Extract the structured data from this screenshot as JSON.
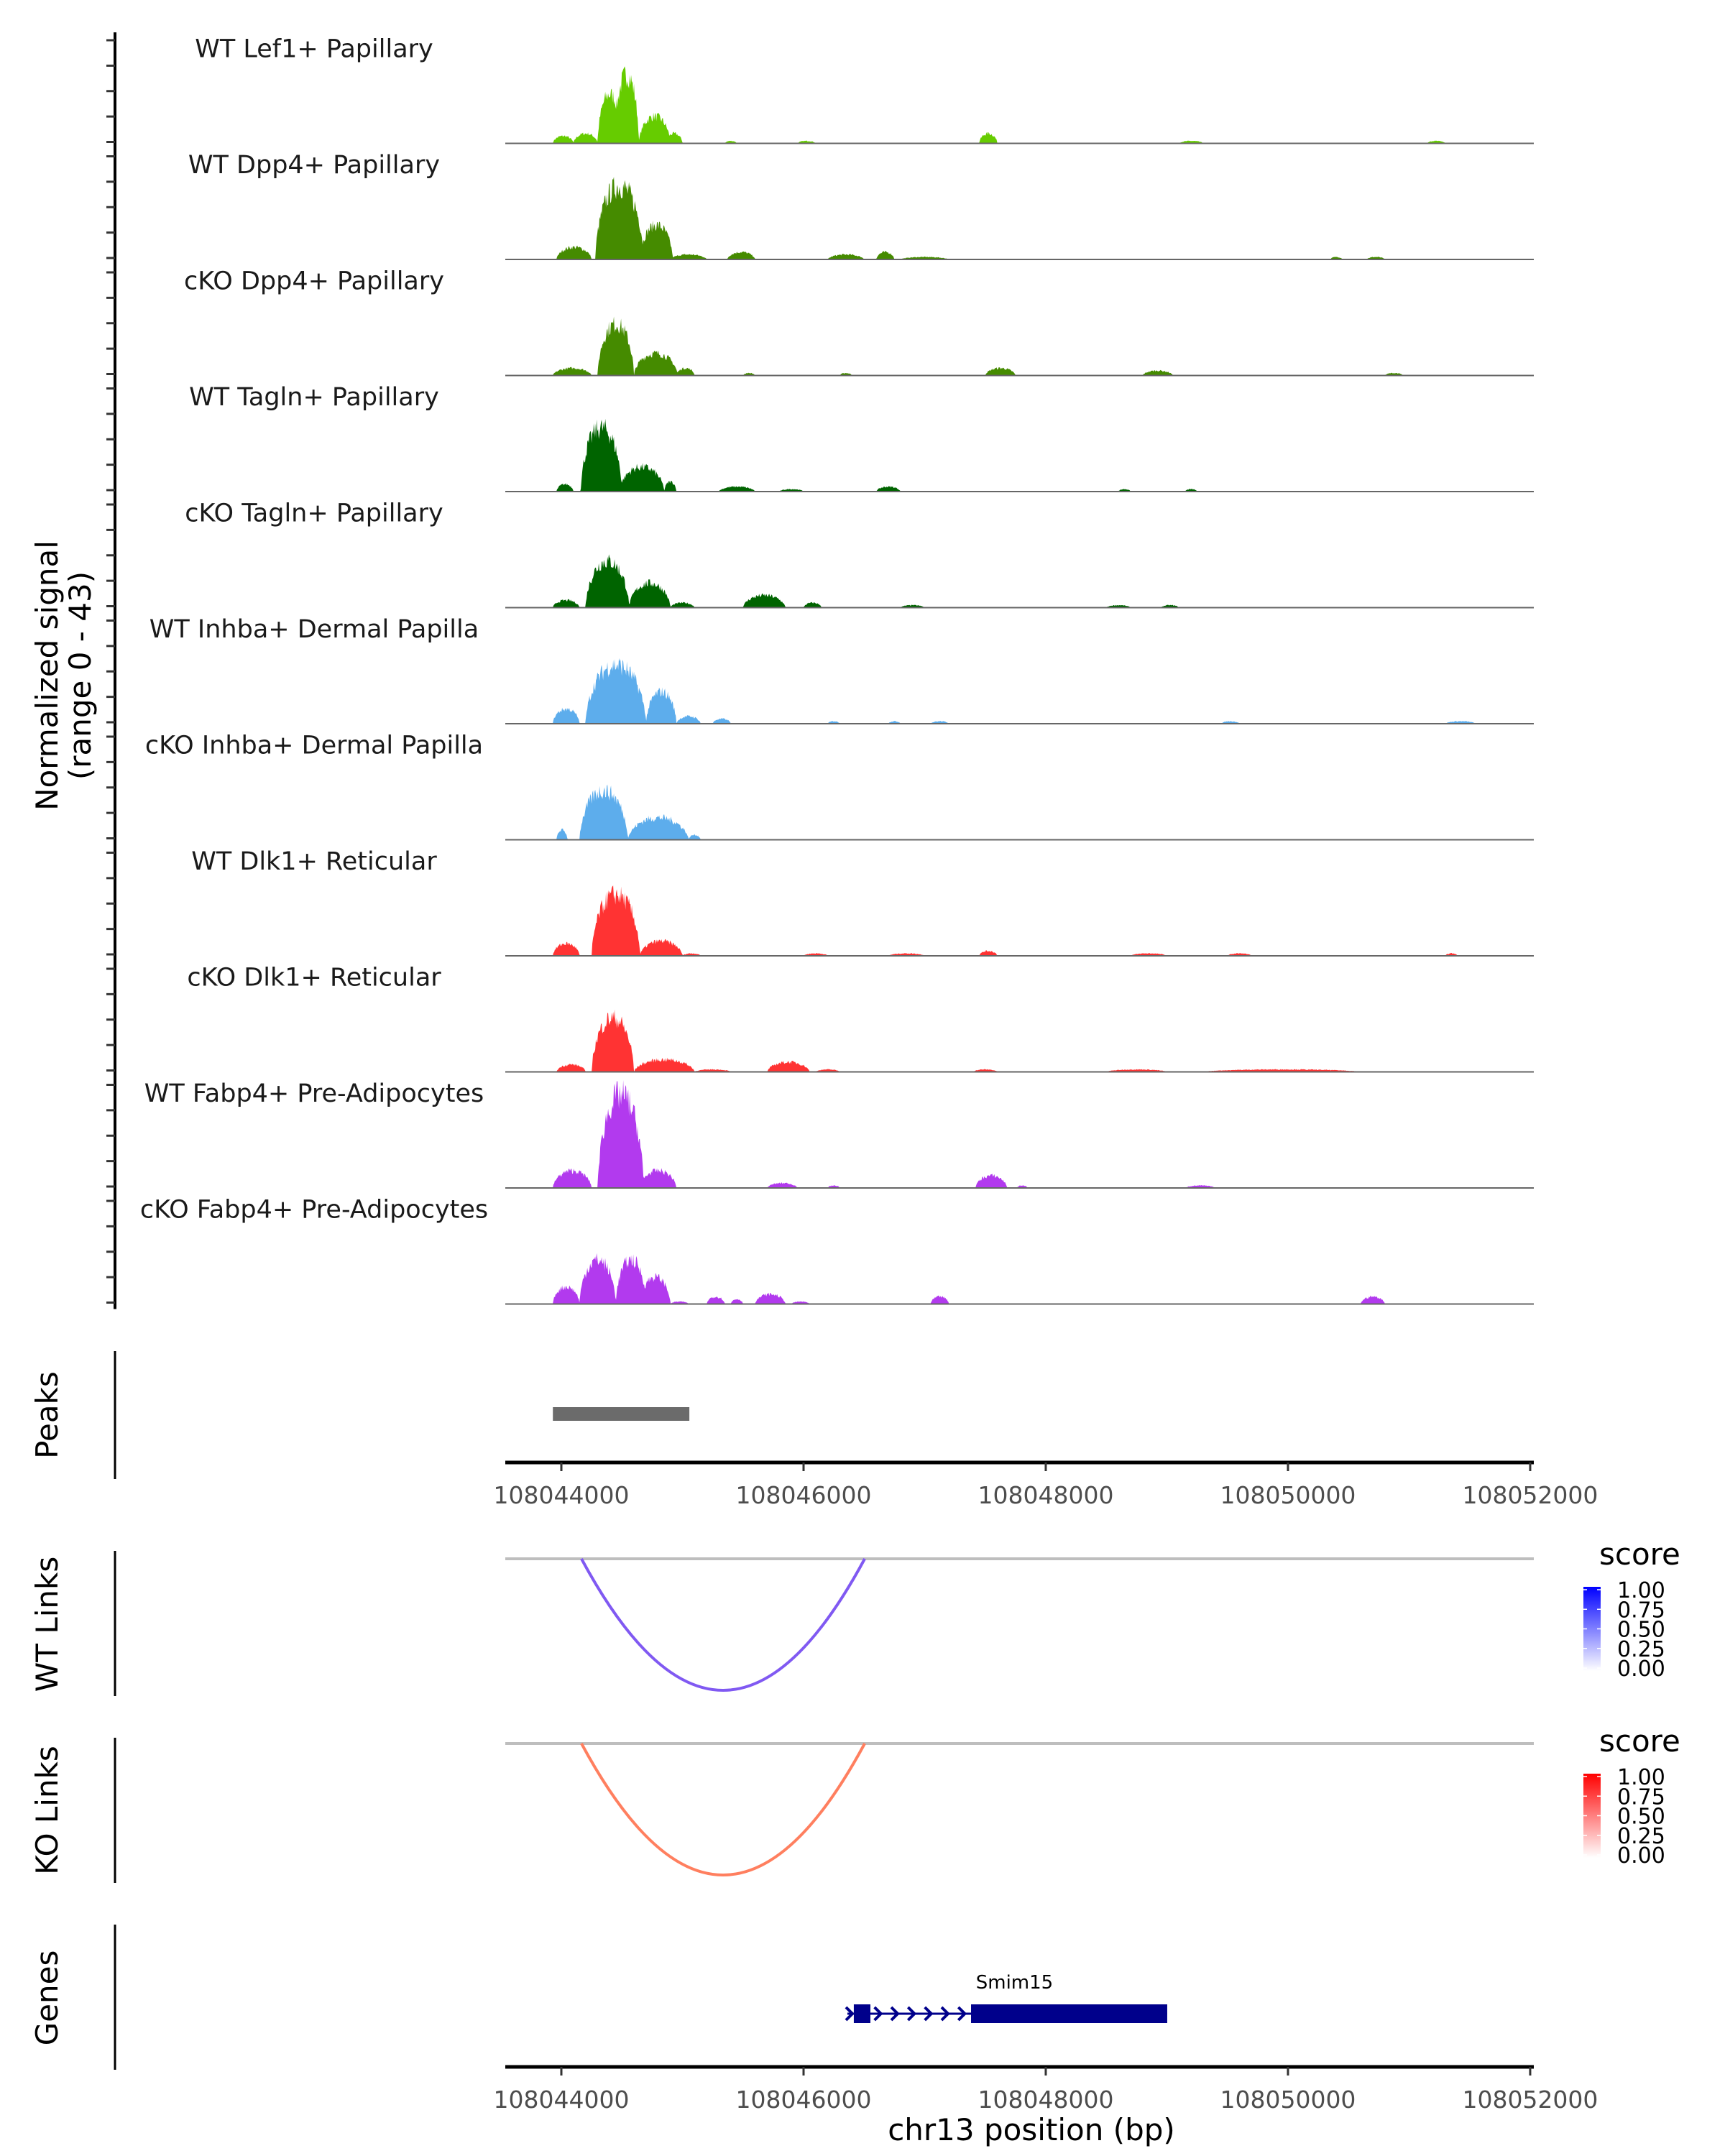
{
  "chart_data": {
    "type": "area",
    "title": "",
    "region": {
      "chrom": "chr13",
      "start": 108043537,
      "end": 108052030
    },
    "xlabel": "chr13 position (bp)",
    "x_ticks": [
      108044000,
      108046000,
      108048000,
      108050000,
      108052000
    ],
    "x_tick_labels": [
      "108044000",
      "108046000",
      "108048000",
      "108050000",
      "108052000"
    ],
    "coverage_ylabel_line1": "Normalized signal",
    "coverage_ylabel_line2": "(range 0 - 43)",
    "ylim": [
      0,
      43
    ],
    "tracks": [
      {
        "name": "WT Lef1+ Papillary",
        "color": "#66CC00",
        "peaks": [
          [
            108043930,
            108044100,
            3
          ],
          [
            108044100,
            108044300,
            4
          ],
          [
            108044300,
            108044500,
            20
          ],
          [
            108044440,
            108044640,
            28
          ],
          [
            108044640,
            108044900,
            11
          ],
          [
            108044860,
            108045000,
            4
          ],
          [
            108045350,
            108045450,
            1
          ],
          [
            108045950,
            108046100,
            1
          ],
          [
            108047450,
            108047600,
            4
          ],
          [
            108049100,
            108049300,
            1
          ],
          [
            108051150,
            108051300,
            1
          ]
        ]
      },
      {
        "name": "WT Dpp4+ Papillary",
        "color": "#458B00",
        "peaks": [
          [
            108043960,
            108044250,
            5
          ],
          [
            108044280,
            108044680,
            30
          ],
          [
            108044650,
            108044920,
            14
          ],
          [
            108044900,
            108045200,
            2
          ],
          [
            108045370,
            108045600,
            3
          ],
          [
            108046200,
            108046500,
            2
          ],
          [
            108046600,
            108046750,
            3
          ],
          [
            108046800,
            108047200,
            1
          ],
          [
            108050350,
            108050450,
            1
          ],
          [
            108050650,
            108050800,
            1
          ]
        ]
      },
      {
        "name": "cKO Dpp4+ Papillary",
        "color": "#458B00",
        "peaks": [
          [
            108043930,
            108044250,
            3
          ],
          [
            108044300,
            108044600,
            21
          ],
          [
            108044600,
            108044960,
            9
          ],
          [
            108044950,
            108045100,
            3
          ],
          [
            108045500,
            108045600,
            1
          ],
          [
            108046300,
            108046400,
            1
          ],
          [
            108047500,
            108047750,
            3
          ],
          [
            108048800,
            108049050,
            2
          ],
          [
            108050800,
            108050950,
            1
          ]
        ]
      },
      {
        "name": "WT Tagln+ Papillary",
        "color": "#006400",
        "peaks": [
          [
            108043960,
            108044100,
            3
          ],
          [
            108044160,
            108044500,
            26
          ],
          [
            108044480,
            108044850,
            10
          ],
          [
            108044850,
            108044950,
            4
          ],
          [
            108045300,
            108045600,
            2
          ],
          [
            108045800,
            108046000,
            1
          ],
          [
            108046600,
            108046800,
            2
          ],
          [
            108048600,
            108048700,
            1
          ],
          [
            108049150,
            108049250,
            1
          ]
        ]
      },
      {
        "name": "cKO Tagln+ Papillary",
        "color": "#006400",
        "peaks": [
          [
            108043930,
            108044150,
            3
          ],
          [
            108044200,
            108044560,
            19
          ],
          [
            108044560,
            108044900,
            10
          ],
          [
            108044900,
            108045100,
            2
          ],
          [
            108045500,
            108045850,
            5
          ],
          [
            108046000,
            108046150,
            2
          ],
          [
            108046800,
            108047000,
            1
          ],
          [
            108048500,
            108048700,
            1
          ],
          [
            108048950,
            108049100,
            1
          ]
        ]
      },
      {
        "name": "WT Inhba+ Dermal Papilla",
        "color": "#5DADEC",
        "peaks": [
          [
            108043930,
            108044150,
            6
          ],
          [
            108044200,
            108044700,
            24
          ],
          [
            108044700,
            108044950,
            13
          ],
          [
            108044950,
            108045150,
            3
          ],
          [
            108045250,
            108045400,
            2
          ],
          [
            108046200,
            108046300,
            1
          ],
          [
            108046700,
            108046800,
            1
          ],
          [
            108047050,
            108047200,
            1
          ],
          [
            108049450,
            108049600,
            1
          ],
          [
            108051300,
            108051550,
            1
          ]
        ]
      },
      {
        "name": "cKO Inhba+ Dermal Papilla",
        "color": "#5DADEC",
        "peaks": [
          [
            108043960,
            108044050,
            4
          ],
          [
            108044150,
            108044550,
            20
          ],
          [
            108044550,
            108045050,
            9
          ],
          [
            108045050,
            108045150,
            2
          ]
        ]
      },
      {
        "name": "WT Dlk1+ Reticular",
        "color": "#FF3333",
        "peaks": [
          [
            108043930,
            108044150,
            5
          ],
          [
            108044250,
            108044650,
            25
          ],
          [
            108044650,
            108045000,
            6
          ],
          [
            108045000,
            108045150,
            1
          ],
          [
            108046000,
            108046200,
            1
          ],
          [
            108046700,
            108047000,
            1
          ],
          [
            108047450,
            108047600,
            2
          ],
          [
            108048700,
            108049000,
            1
          ],
          [
            108049500,
            108049700,
            1
          ],
          [
            108051300,
            108051400,
            1
          ]
        ]
      },
      {
        "name": "cKO Dlk1+ Reticular",
        "color": "#FF3333",
        "peaks": [
          [
            108043960,
            108044200,
            3
          ],
          [
            108044250,
            108044600,
            22
          ],
          [
            108044600,
            108045100,
            5
          ],
          [
            108045100,
            108045400,
            1
          ],
          [
            108045700,
            108046050,
            4
          ],
          [
            108046100,
            108046300,
            1
          ],
          [
            108047400,
            108047600,
            1
          ],
          [
            108048500,
            108049000,
            1
          ],
          [
            108049300,
            108050600,
            1
          ]
        ]
      },
      {
        "name": "WT Fabp4+ Pre-Adipocytes",
        "color": "#B23AEE",
        "peaks": [
          [
            108043930,
            108044250,
            7
          ],
          [
            108044300,
            108044680,
            38
          ],
          [
            108044650,
            108044950,
            7
          ],
          [
            108045700,
            108045950,
            2
          ],
          [
            108046200,
            108046300,
            1
          ],
          [
            108047420,
            108047680,
            5
          ],
          [
            108047760,
            108047850,
            1
          ],
          [
            108049150,
            108049400,
            1
          ]
        ]
      },
      {
        "name": "cKO Fabp4+ Pre-Adipocytes",
        "color": "#B23AEE",
        "peaks": [
          [
            108043930,
            108044150,
            7
          ],
          [
            108044150,
            108044450,
            18
          ],
          [
            108044450,
            108044700,
            18
          ],
          [
            108044650,
            108044900,
            11
          ],
          [
            108044900,
            108045050,
            1
          ],
          [
            108045200,
            108045350,
            3
          ],
          [
            108045400,
            108045500,
            2
          ],
          [
            108045600,
            108045850,
            4
          ],
          [
            108045900,
            108046050,
            1
          ],
          [
            108047050,
            108047200,
            3
          ],
          [
            108050600,
            108050800,
            3
          ]
        ]
      }
    ],
    "peaks_track": {
      "label": "Peaks",
      "color": "#6B6B6B",
      "ranges": [
        [
          108043930,
          108045057
        ]
      ]
    },
    "links_tracks": [
      {
        "label": "WT Links",
        "color": "#8059F2",
        "links": [
          {
            "start": 108044166,
            "end": 108046505,
            "score": 0.6
          }
        ],
        "legend": {
          "title": "score",
          "low_color": "#FFFFFF",
          "high_color": "#0000FF",
          "ticks": [
            "1.00",
            "0.75",
            "0.50",
            "0.25",
            "0.00"
          ]
        }
      },
      {
        "label": "KO Links",
        "color": "#FF7F5F",
        "links": [
          {
            "start": 108044166,
            "end": 108046505,
            "score": 0.6
          }
        ],
        "legend": {
          "title": "score",
          "low_color": "#FFFFFF",
          "high_color": "#FF0000",
          "ticks": [
            "1.00",
            "0.75",
            "0.50",
            "0.25",
            "0.00"
          ]
        }
      }
    ],
    "genes_track": {
      "label": "Genes",
      "color": "#00008B",
      "genes": [
        {
          "name": "Smim15",
          "strand": "+",
          "start": 108046362,
          "end": 108049003,
          "exons": [
            [
              108046415,
              108046552
            ],
            [
              108047383,
              108049003
            ]
          ]
        }
      ]
    }
  }
}
